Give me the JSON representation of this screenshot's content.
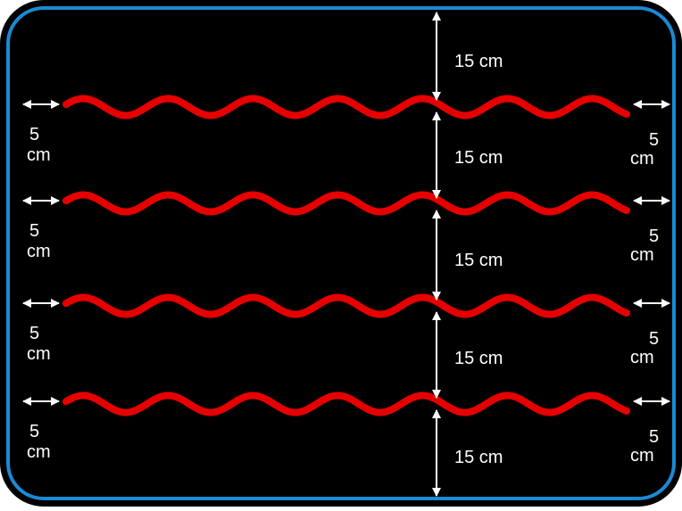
{
  "board": {
    "background_color": "#000000",
    "border_color": "#1a8ad4",
    "outline_color": "#000000"
  },
  "waves": {
    "color": "#e60000",
    "count": 4
  },
  "arrows": {
    "color": "#ffffff"
  },
  "labels": {
    "vertical_gap": "15 cm",
    "side_margin_value": "5",
    "side_margin_unit": "cm"
  }
}
